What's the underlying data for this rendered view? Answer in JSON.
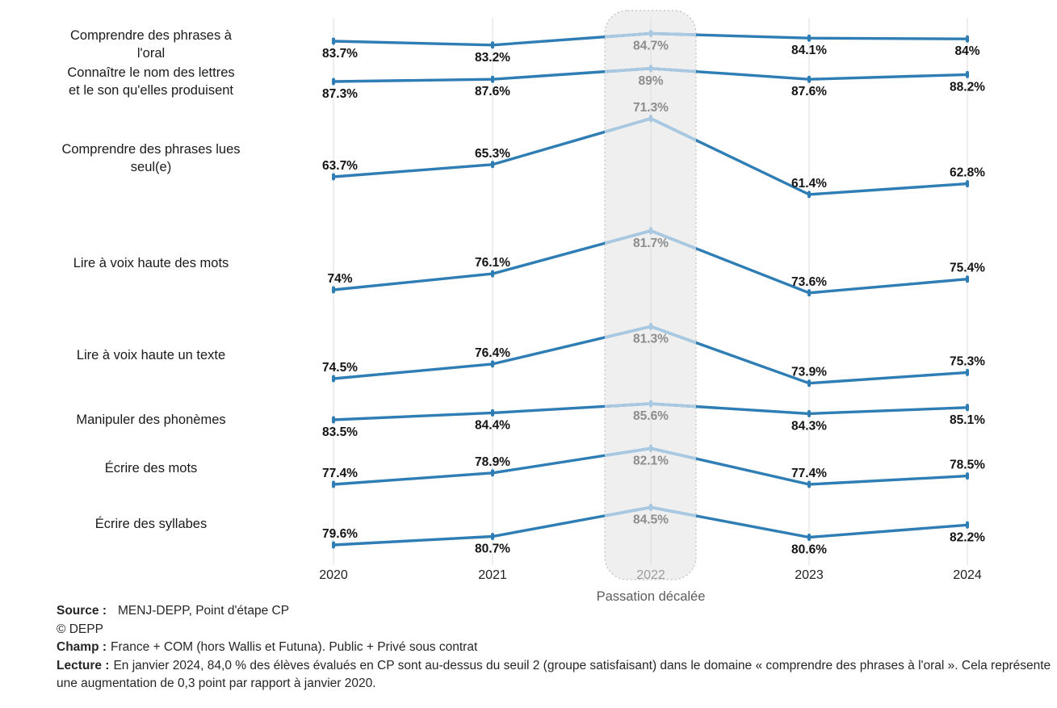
{
  "chart_data": {
    "type": "line",
    "title": "",
    "x": [
      2020,
      2021,
      2022,
      2023,
      2024
    ],
    "x_labels": [
      "2020",
      "2021",
      "2022",
      "2023",
      "2024"
    ],
    "highlight": {
      "x": "2022",
      "label": "Passation décalée"
    },
    "ylabel": "",
    "xlabel": "",
    "grid": "vertical-only",
    "series": [
      {
        "name": "Comprendre des phrases à l'oral",
        "name_display": "Comprendre des phrases à\nl'oral",
        "values": [
          83.7,
          83.2,
          84.7,
          84.1,
          84.0
        ],
        "labels": [
          "83.7%",
          "83.2%",
          "84.7%",
          "84.1%",
          "84%"
        ]
      },
      {
        "name": "Connaître le nom des lettres et le son qu'elles produisent",
        "name_display": "Connaître le nom des lettres\net le son qu'elles produisent",
        "values": [
          87.3,
          87.6,
          89.0,
          87.6,
          88.2
        ],
        "labels": [
          "87.3%",
          "87.6%",
          "89%",
          "87.6%",
          "88.2%"
        ]
      },
      {
        "name": "Comprendre des phrases lues seul(e)",
        "name_display": "Comprendre des phrases lues\nseul(e)",
        "values": [
          63.7,
          65.3,
          71.3,
          61.4,
          62.8
        ],
        "labels": [
          "63.7%",
          "65.3%",
          "71.3%",
          "61.4%",
          "62.8%"
        ]
      },
      {
        "name": "Lire à voix haute des mots",
        "name_display": "Lire à voix haute des mots",
        "values": [
          74.0,
          76.1,
          81.7,
          73.6,
          75.4
        ],
        "labels": [
          "74%",
          "76.1%",
          "81.7%",
          "73.6%",
          "75.4%"
        ]
      },
      {
        "name": "Lire à voix haute un texte",
        "name_display": "Lire à voix haute un texte",
        "values": [
          74.5,
          76.4,
          81.3,
          73.9,
          75.3
        ],
        "labels": [
          "74.5%",
          "76.4%",
          "81.3%",
          "73.9%",
          "75.3%"
        ]
      },
      {
        "name": "Manipuler des phonèmes",
        "name_display": "Manipuler des phonèmes",
        "values": [
          83.5,
          84.4,
          85.6,
          84.3,
          85.1
        ],
        "labels": [
          "83.5%",
          "84.4%",
          "85.6%",
          "84.3%",
          "85.1%"
        ]
      },
      {
        "name": "Écrire des mots",
        "name_display": "Écrire des mots",
        "values": [
          77.4,
          78.9,
          82.1,
          77.4,
          78.5
        ],
        "labels": [
          "77.4%",
          "78.9%",
          "82.1%",
          "77.4%",
          "78.5%"
        ]
      },
      {
        "name": "Écrire des syllabes",
        "name_display": "Écrire des syllabes",
        "values": [
          79.6,
          80.7,
          84.5,
          80.6,
          82.2
        ],
        "labels": [
          "79.6%",
          "80.7%",
          "84.5%",
          "80.6%",
          "82.2%"
        ]
      }
    ],
    "colors": {
      "line": "#2e7db5",
      "line_highlight": "#a9c9e2",
      "value_label": "#141414",
      "value_label_highlight": "#8c8c8c",
      "grid": "#dcdcdc",
      "band_fill": "#efefef",
      "band_border": "#b3b3b3",
      "year_label": "#1f1f1f",
      "year_label_highlight": "#9c9c9c",
      "passation_label": "#5d5d5d"
    }
  },
  "footer": {
    "source_label": "Source :",
    "source_text": "MENJ-DEPP, Point d'étape CP",
    "copyright": "© DEPP",
    "champ_label": "Champ :",
    "champ_text": "France + COM (hors Wallis et Futuna). Public + Privé sous contrat",
    "lecture_label": "Lecture :",
    "lecture_text": "En janvier 2024, 84,0 % des élèves évalués en CP sont au-dessus du seuil 2 (groupe satisfaisant) dans le domaine « comprendre des phrases à l'oral ». Cela représente une augmentation de 0,3 point par rapport à janvier 2020."
  }
}
